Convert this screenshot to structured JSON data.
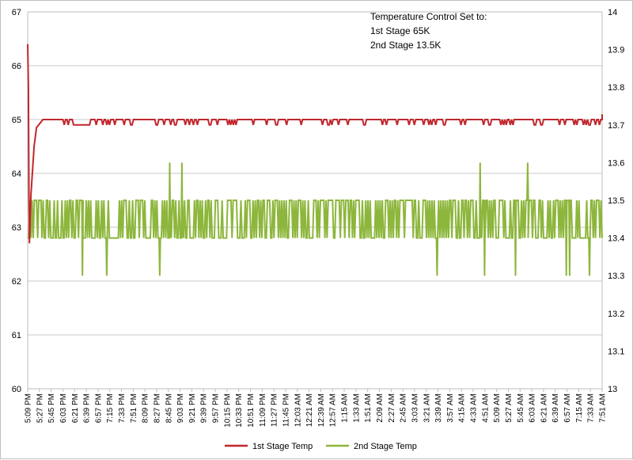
{
  "chart_data": {
    "type": "line",
    "title": "",
    "xlabel": "",
    "ylabel": "",
    "y2label": "",
    "grid": true,
    "legend_position": "bottom",
    "annotation": [
      "Temperature Control Set to:",
      "1st Stage 65K",
      "2nd Stage 13.5K"
    ],
    "x": [
      "5:09 PM",
      "5:27 PM",
      "5:45 PM",
      "6:03 PM",
      "6:21 PM",
      "6:39 PM",
      "6:57 PM",
      "7:15 PM",
      "7:33 PM",
      "7:51 PM",
      "8:09 PM",
      "8:27 PM",
      "8:45 PM",
      "9:03 PM",
      "9:21 PM",
      "9:39 PM",
      "9:57 PM",
      "10:15 PM",
      "10:33 PM",
      "10:51 PM",
      "11:09 PM",
      "11:27 PM",
      "11:45 PM",
      "12:03 AM",
      "12:21 AM",
      "12:39 AM",
      "12:57 AM",
      "1:15 AM",
      "1:33 AM",
      "1:51 AM",
      "2:09 AM",
      "2:27 AM",
      "2:45 AM",
      "3:03 AM",
      "3:21 AM",
      "3:39 AM",
      "3:57 AM",
      "4:15 AM",
      "4:33 AM",
      "4:51 AM",
      "5:09 AM",
      "5:27 AM",
      "5:45 AM",
      "6:03 AM",
      "6:21 AM",
      "6:39 AM",
      "6:57 AM",
      "7:15 AM",
      "7:33 AM",
      "7:51 AM"
    ],
    "y_left": {
      "ylim": [
        60,
        67
      ],
      "ticks": [
        "60",
        "61",
        "62",
        "63",
        "64",
        "65",
        "66",
        "67"
      ]
    },
    "y_right": {
      "ylim": [
        13,
        14
      ],
      "ticks": [
        "13",
        "13.1",
        "13.2",
        "13.3",
        "13.4",
        "13.5",
        "13.6",
        "13.7",
        "13.8",
        "13.9",
        "14"
      ]
    },
    "series": [
      {
        "name": "1st Stage Temp",
        "axis": "left",
        "color": "#c0272d",
        "values": [
          66.4,
          64.2,
          65.0,
          65.0,
          65.0,
          65.0,
          64.9,
          65.0,
          65.0,
          65.0,
          65.0,
          65.0,
          65.0,
          65.0,
          65.0,
          65.0,
          65.0,
          65.0,
          65.0,
          65.0,
          65.0,
          65.0,
          65.0,
          65.0,
          65.0,
          65.0,
          65.0,
          65.0,
          65.0,
          65.0,
          65.0,
          65.0,
          65.0,
          65.0,
          65.0,
          65.0,
          65.0,
          65.0,
          65.0,
          65.0,
          65.0,
          65.0,
          65.0,
          65.0,
          65.0,
          65.0,
          65.0,
          65.0,
          65.0,
          65.1
        ],
        "dips": [
          {
            "x_index": 0.15,
            "value": 62.7
          }
        ],
        "fluctuation": [
          64.9,
          65.0
        ]
      },
      {
        "name": "2nd Stage Temp",
        "axis": "right",
        "color": "#8db63c",
        "values": [
          13.5,
          13.4,
          13.5,
          13.4,
          13.5,
          13.4,
          13.5,
          13.4,
          13.5,
          13.4,
          13.5,
          13.4,
          13.5,
          13.4,
          13.5,
          13.4,
          13.5,
          13.4,
          13.5,
          13.4,
          13.5,
          13.4,
          13.5,
          13.4,
          13.5,
          13.4,
          13.5,
          13.4,
          13.5,
          13.4,
          13.5,
          13.4,
          13.5,
          13.4,
          13.5,
          13.4,
          13.5,
          13.4,
          13.5,
          13.4,
          13.5,
          13.4,
          13.5,
          13.4,
          13.5,
          13.4,
          13.5,
          13.4,
          13.5,
          13.5
        ],
        "fluctuation": [
          13.4,
          13.5
        ],
        "spikes_up": [
          {
            "x_index": 12.1,
            "value": 13.6
          },
          {
            "x_index": 13.1,
            "value": 13.6
          },
          {
            "x_index": 38.5,
            "value": 13.6
          },
          {
            "x_index": 42.6,
            "value": 13.6
          }
        ],
        "spikes_down": [
          {
            "x_index": 4.6,
            "value": 13.3
          },
          {
            "x_index": 6.7,
            "value": 13.3
          },
          {
            "x_index": 11.2,
            "value": 13.3
          },
          {
            "x_index": 34.9,
            "value": 13.3
          },
          {
            "x_index": 38.9,
            "value": 13.3
          },
          {
            "x_index": 41.6,
            "value": 13.3
          },
          {
            "x_index": 45.9,
            "value": 13.3
          },
          {
            "x_index": 46.2,
            "value": 13.3
          },
          {
            "x_index": 47.9,
            "value": 13.3
          }
        ]
      }
    ]
  }
}
